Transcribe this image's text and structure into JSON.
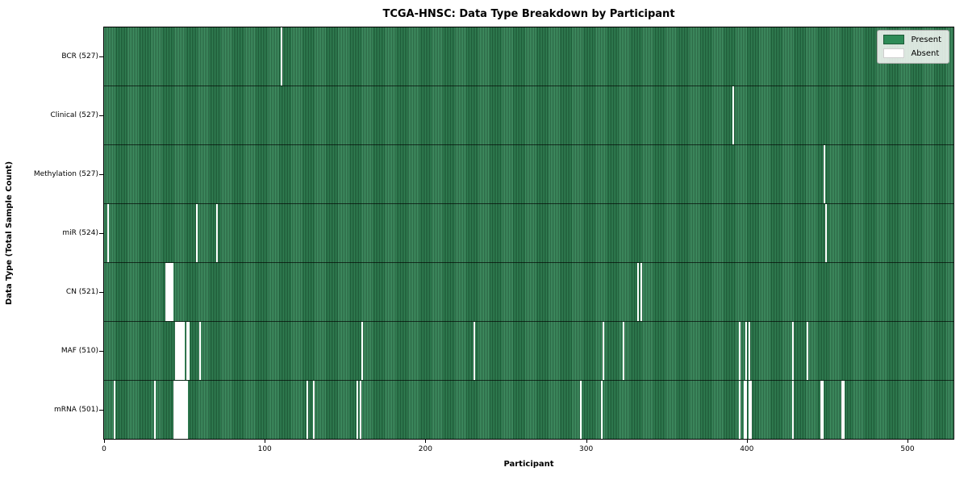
{
  "title": "TCGA-HNSC: Data Type Breakdown by Participant",
  "legend": {
    "present_label": "Present",
    "absent_label": "Absent"
  },
  "chart_data": {
    "type": "heatmap",
    "title": "TCGA-HNSC: Data Type Breakdown by Participant",
    "xlabel": "Participant",
    "ylabel": "Data Type (Total Sample Count)",
    "x_ticks": [
      0,
      100,
      200,
      300,
      400,
      500
    ],
    "x_range": [
      0,
      528
    ],
    "n_participants": 528,
    "grid": false,
    "legend_position": "upper right",
    "legend_entries": [
      "Present",
      "Absent"
    ],
    "colors": {
      "present": "#2e8b57",
      "present_edge": "#1d5a37",
      "absent": "#ffffff",
      "legend_bg": "#f2f5f2"
    },
    "rows": [
      {
        "name": "BCR",
        "label": "BCR (527)",
        "total": 527,
        "absent": [
          110
        ]
      },
      {
        "name": "Clinical",
        "label": "Clinical (527)",
        "total": 527,
        "absent": [
          391
        ]
      },
      {
        "name": "Methylation",
        "label": "Methylation (527)",
        "total": 527,
        "absent": [
          448
        ]
      },
      {
        "name": "miR",
        "label": "miR (524)",
        "total": 524,
        "absent": [
          2,
          57,
          70,
          449
        ]
      },
      {
        "name": "CN",
        "label": "CN (521)",
        "total": 521,
        "absent": [
          38,
          39,
          40,
          41,
          42,
          332,
          334
        ]
      },
      {
        "name": "MAF",
        "label": "MAF (510)",
        "total": 510,
        "absent": [
          44,
          45,
          46,
          47,
          48,
          49,
          51,
          52,
          59,
          160,
          230,
          310,
          323,
          395,
          399,
          401,
          428,
          437
        ]
      },
      {
        "name": "mRNA",
        "label": "mRNA (501)",
        "total": 501,
        "absent": [
          6,
          31,
          43,
          44,
          45,
          46,
          47,
          48,
          49,
          50,
          51,
          126,
          130,
          157,
          159,
          296,
          309,
          395,
          398,
          399,
          401,
          402,
          428,
          446,
          447,
          459,
          460
        ]
      }
    ]
  }
}
